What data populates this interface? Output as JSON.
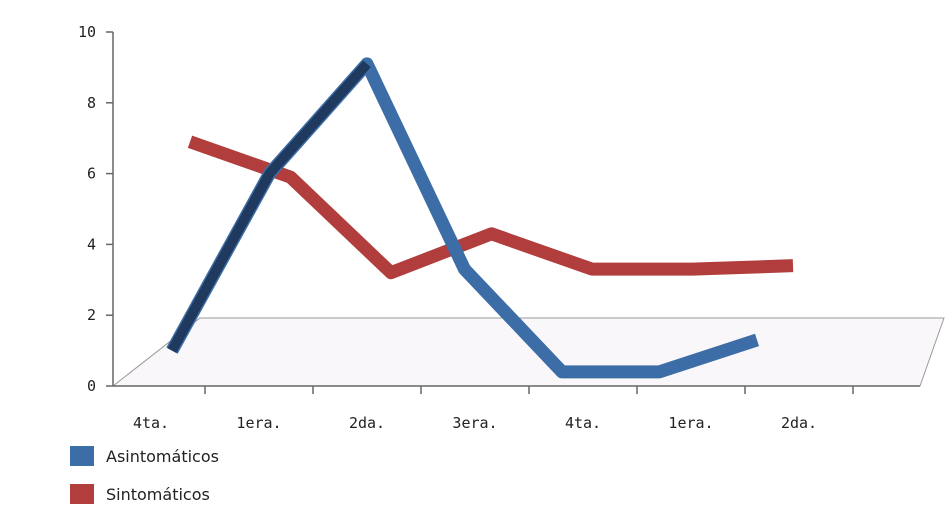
{
  "chart_data": {
    "type": "line",
    "categories": [
      "4ta.",
      "1era.",
      "2da.",
      "3era.",
      "4ta.",
      "1era.",
      "2da."
    ],
    "series": [
      {
        "name": "Asintomáticos",
        "color": "#3d6da6",
        "values": [
          1,
          6,
          9.1,
          3.3,
          0.4,
          0.4,
          1.3
        ]
      },
      {
        "name": "Sintomáticos",
        "color": "#b13d3d",
        "values": [
          6.9,
          5.9,
          3.2,
          4.3,
          3.3,
          3.3,
          3.4
        ]
      }
    ],
    "ylim": [
      0,
      10
    ],
    "yticks": [
      "0",
      "2",
      "4",
      "6",
      "8",
      "10"
    ],
    "legend_position": "bottom-left",
    "grid": false
  }
}
